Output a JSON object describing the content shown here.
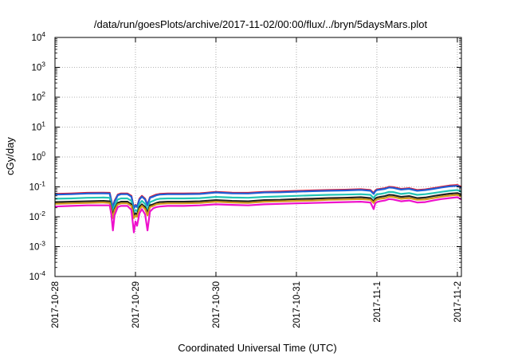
{
  "chart_data": {
    "type": "line",
    "title": "/data/run/goesPlots/archive/2017-11-02/00:00/flux/../bryn/5daysMars.plot",
    "xlabel": "Coordinated Universal Time (UTC)",
    "ylabel": "cGy/day",
    "y_scale": "log",
    "ylim": [
      0.0001,
      10000
    ],
    "y_ticks": [
      {
        "base": "10",
        "exp": "-4",
        "value": 0.0001
      },
      {
        "base": "10",
        "exp": "-3",
        "value": 0.001
      },
      {
        "base": "10",
        "exp": "-2",
        "value": 0.01
      },
      {
        "base": "10",
        "exp": "-1",
        "value": 0.1
      },
      {
        "base": "10",
        "exp": "0",
        "value": 1
      },
      {
        "base": "10",
        "exp": "1",
        "value": 10
      },
      {
        "base": "10",
        "exp": "2",
        "value": 100
      },
      {
        "base": "10",
        "exp": "3",
        "value": 1000
      },
      {
        "base": "10",
        "exp": "4",
        "value": 10000
      }
    ],
    "x_ticks": [
      "2017-10-28",
      "2017-10-29",
      "2017-10-30",
      "2017-10-31",
      "2017-11-1",
      "2017-11-2"
    ],
    "x_tick_days": [
      0,
      1,
      2,
      3,
      4,
      5
    ],
    "x_range_days": [
      0,
      5.05
    ],
    "grid": true,
    "x": [
      0,
      0.2,
      0.4,
      0.6,
      0.68,
      0.7,
      0.72,
      0.74,
      0.78,
      0.82,
      0.9,
      0.95,
      0.98,
      1.0,
      1.02,
      1.05,
      1.08,
      1.12,
      1.15,
      1.18,
      1.22,
      1.26,
      1.3,
      1.4,
      1.6,
      1.8,
      2.0,
      2.2,
      2.4,
      2.6,
      2.8,
      3.0,
      3.2,
      3.4,
      3.6,
      3.8,
      3.92,
      3.96,
      3.98,
      4.0,
      4.04,
      4.1,
      4.15,
      4.2,
      4.3,
      4.4,
      4.5,
      4.6,
      4.7,
      4.8,
      4.9,
      5.0,
      5.05
    ],
    "series": [
      {
        "color": "#e4142a",
        "values": [
          0.058,
          0.06,
          0.063,
          0.064,
          0.063,
          0.035,
          0.02,
          0.034,
          0.055,
          0.06,
          0.06,
          0.05,
          0.02,
          0.025,
          0.022,
          0.04,
          0.05,
          0.04,
          0.025,
          0.045,
          0.05,
          0.055,
          0.058,
          0.06,
          0.06,
          0.061,
          0.068,
          0.064,
          0.063,
          0.068,
          0.07,
          0.073,
          0.076,
          0.078,
          0.08,
          0.083,
          0.078,
          0.062,
          0.075,
          0.082,
          0.085,
          0.09,
          0.1,
          0.098,
          0.085,
          0.09,
          0.078,
          0.082,
          0.09,
          0.1,
          0.11,
          0.115,
          0.1
        ]
      },
      {
        "color": "#1f5fd6",
        "values": [
          0.055,
          0.057,
          0.06,
          0.061,
          0.06,
          0.033,
          0.019,
          0.032,
          0.052,
          0.057,
          0.057,
          0.047,
          0.019,
          0.024,
          0.021,
          0.038,
          0.047,
          0.038,
          0.024,
          0.043,
          0.047,
          0.052,
          0.055,
          0.057,
          0.057,
          0.058,
          0.065,
          0.061,
          0.06,
          0.065,
          0.066,
          0.069,
          0.072,
          0.074,
          0.076,
          0.079,
          0.074,
          0.058,
          0.071,
          0.078,
          0.081,
          0.086,
          0.095,
          0.093,
          0.081,
          0.086,
          0.074,
          0.078,
          0.086,
          0.095,
          0.104,
          0.108,
          0.094
        ]
      },
      {
        "color": "#22c4b4",
        "values": [
          0.04,
          0.041,
          0.043,
          0.044,
          0.043,
          0.024,
          0.014,
          0.023,
          0.038,
          0.041,
          0.041,
          0.034,
          0.014,
          0.017,
          0.015,
          0.027,
          0.034,
          0.027,
          0.017,
          0.031,
          0.034,
          0.038,
          0.04,
          0.041,
          0.041,
          0.042,
          0.046,
          0.044,
          0.043,
          0.046,
          0.048,
          0.05,
          0.052,
          0.054,
          0.055,
          0.057,
          0.054,
          0.042,
          0.051,
          0.056,
          0.058,
          0.062,
          0.068,
          0.067,
          0.058,
          0.062,
          0.054,
          0.057,
          0.062,
          0.068,
          0.074,
          0.078,
          0.068
        ]
      },
      {
        "color": "#222222",
        "values": [
          0.031,
          0.032,
          0.033,
          0.034,
          0.033,
          0.019,
          0.011,
          0.018,
          0.029,
          0.032,
          0.032,
          0.026,
          0.011,
          0.013,
          0.012,
          0.021,
          0.026,
          0.021,
          0.013,
          0.024,
          0.026,
          0.029,
          0.031,
          0.032,
          0.032,
          0.033,
          0.036,
          0.034,
          0.033,
          0.036,
          0.037,
          0.039,
          0.04,
          0.042,
          0.043,
          0.045,
          0.042,
          0.033,
          0.04,
          0.044,
          0.046,
          0.049,
          0.054,
          0.053,
          0.046,
          0.049,
          0.042,
          0.044,
          0.049,
          0.054,
          0.059,
          0.062,
          0.054
        ]
      },
      {
        "color": "#d49a1c",
        "values": [
          0.027,
          0.028,
          0.029,
          0.03,
          0.029,
          0.016,
          0.009,
          0.016,
          0.026,
          0.028,
          0.028,
          0.023,
          0.009,
          0.011,
          0.01,
          0.018,
          0.023,
          0.018,
          0.011,
          0.021,
          0.023,
          0.026,
          0.027,
          0.028,
          0.028,
          0.029,
          0.032,
          0.03,
          0.029,
          0.032,
          0.033,
          0.034,
          0.035,
          0.037,
          0.038,
          0.039,
          0.037,
          0.029,
          0.035,
          0.038,
          0.04,
          0.042,
          0.047,
          0.046,
          0.04,
          0.042,
          0.037,
          0.038,
          0.042,
          0.047,
          0.051,
          0.054,
          0.047
        ]
      },
      {
        "color": "#ee11cc",
        "values": [
          0.022,
          0.023,
          0.024,
          0.024,
          0.024,
          0.012,
          0.0035,
          0.011,
          0.021,
          0.023,
          0.023,
          0.017,
          0.003,
          0.007,
          0.005,
          0.013,
          0.018,
          0.012,
          0.0035,
          0.015,
          0.019,
          0.021,
          0.022,
          0.023,
          0.023,
          0.024,
          0.026,
          0.025,
          0.024,
          0.026,
          0.027,
          0.028,
          0.029,
          0.03,
          0.031,
          0.032,
          0.03,
          0.018,
          0.028,
          0.031,
          0.033,
          0.035,
          0.039,
          0.038,
          0.033,
          0.035,
          0.03,
          0.031,
          0.035,
          0.039,
          0.042,
          0.045,
          0.038
        ]
      }
    ]
  }
}
